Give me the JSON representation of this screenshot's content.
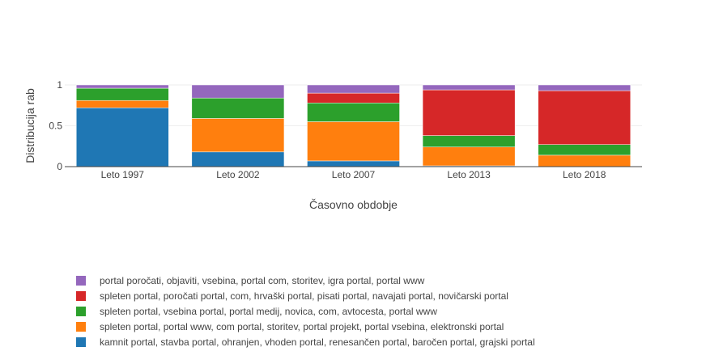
{
  "chart_data": {
    "type": "bar",
    "stacked": true,
    "xlabel": "Časovno obdobje",
    "ylabel": "Distribucija rab",
    "ylim": [
      0,
      1
    ],
    "yticks": [
      0,
      0.5,
      1
    ],
    "ytick_labels": [
      "0",
      "0.5",
      "1"
    ],
    "grid": true,
    "legend_position": "bottom-left",
    "categories": [
      "Leto 1997",
      "Leto 2002",
      "Leto 2007",
      "Leto 2013",
      "Leto 2018"
    ],
    "series": [
      {
        "name": "kamnit portal, stavba portal, ohranjen, vhoden portal, renesančen portal, baročen portal, grajski portal",
        "color": "#1f77b4",
        "values": [
          0.72,
          0.18,
          0.07,
          0.01,
          0.0
        ]
      },
      {
        "name": "spleten portal, portal www, com portal, storitev, portal projekt, portal vsebina, elektronski portal",
        "color": "#ff7f0e",
        "values": [
          0.09,
          0.41,
          0.48,
          0.23,
          0.14
        ]
      },
      {
        "name": "spleten portal, vsebina portal, portal medij, novica, com, avtocesta, portal www",
        "color": "#2ca02c",
        "values": [
          0.15,
          0.25,
          0.23,
          0.14,
          0.13
        ]
      },
      {
        "name": "spleten portal, poročati portal, com, hrvaški portal, pisati portal, navajati portal, novičarski portal",
        "color": "#d62728",
        "values": [
          0.0,
          0.0,
          0.12,
          0.56,
          0.66
        ]
      },
      {
        "name": "portal poročati, objaviti, vsebina, portal com, storitev, igra portal, portal www",
        "color": "#9467bd",
        "values": [
          0.04,
          0.16,
          0.1,
          0.06,
          0.07
        ]
      }
    ]
  }
}
